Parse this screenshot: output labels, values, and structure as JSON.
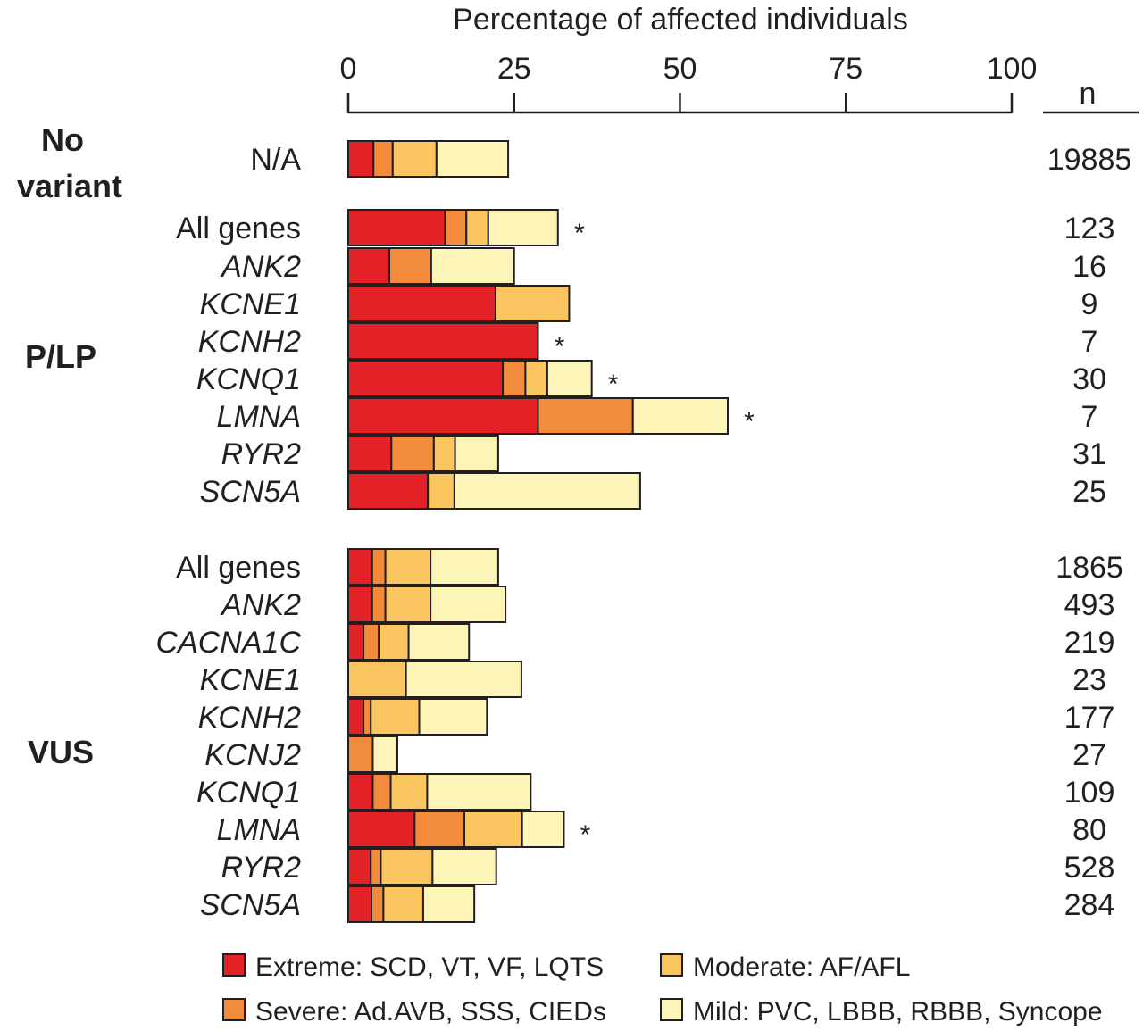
{
  "chart_data": {
    "type": "bar",
    "stacked": true,
    "orientation": "horizontal",
    "xlabel": "Percentage of affected individuals",
    "xlim": [
      0,
      100
    ],
    "xticks": [
      "0",
      "25",
      "50",
      "75",
      "100"
    ],
    "n_header": "n",
    "legend": [
      {
        "name": "Extreme: SCD, VT, VF, LQTS",
        "color": "#e32227"
      },
      {
        "name": "Moderate: AF/AFL",
        "color": "#fbc55f"
      },
      {
        "name": "Severe: Ad.AVB, SSS, CIEDs",
        "color": "#f28c3c"
      },
      {
        "name": "Mild: PVC, LBBB, RBBB, Syncope",
        "color": "#fdf5b7"
      }
    ],
    "series_order": [
      "extreme",
      "severe",
      "moderate",
      "mild"
    ],
    "colors": {
      "extreme": "#e32227",
      "severe": "#f28c3c",
      "moderate": "#fbc55f",
      "mild": "#fdf5b7"
    },
    "groups": [
      {
        "label": "No variant",
        "rows": [
          {
            "label": "N/A",
            "italic": false,
            "n": "19885",
            "star": false,
            "values": [
              3.8,
              2.9,
              6.6,
              10.8
            ]
          }
        ]
      },
      {
        "label": "P/LP",
        "rows": [
          {
            "label": "All genes",
            "italic": false,
            "n": "123",
            "star": true,
            "values": [
              14.6,
              3.2,
              3.3,
              10.5
            ]
          },
          {
            "label": "ANK2",
            "italic": true,
            "n": "16",
            "star": false,
            "values": [
              6.2,
              6.3,
              0,
              12.5
            ]
          },
          {
            "label": "KCNE1",
            "italic": true,
            "n": "9",
            "star": false,
            "values": [
              22.2,
              0,
              11.1,
              0
            ]
          },
          {
            "label": "KCNH2",
            "italic": true,
            "n": "7",
            "star": true,
            "values": [
              28.6,
              0,
              0,
              0
            ]
          },
          {
            "label": "KCNQ1",
            "italic": true,
            "n": "30",
            "star": true,
            "values": [
              23.3,
              3.4,
              3.3,
              6.7
            ]
          },
          {
            "label": "LMNA",
            "italic": true,
            "n": "7",
            "star": true,
            "values": [
              28.6,
              14.3,
              0,
              14.3
            ]
          },
          {
            "label": "RYR2",
            "italic": true,
            "n": "31",
            "star": false,
            "values": [
              6.5,
              6.4,
              3.2,
              6.5
            ]
          },
          {
            "label": "SCN5A",
            "italic": true,
            "n": "25",
            "star": false,
            "values": [
              12.0,
              0,
              4.0,
              28.0
            ]
          }
        ]
      },
      {
        "label": "VUS",
        "rows": [
          {
            "label": "All genes",
            "italic": false,
            "n": "1865",
            "star": false,
            "values": [
              3.6,
              2.0,
              6.8,
              10.2
            ]
          },
          {
            "label": "ANK2",
            "italic": true,
            "n": "493",
            "star": false,
            "values": [
              3.6,
              2.0,
              6.8,
              11.3
            ]
          },
          {
            "label": "CACNA1C",
            "italic": true,
            "n": "219",
            "star": false,
            "values": [
              2.3,
              2.3,
              4.5,
              9.1
            ]
          },
          {
            "label": "KCNE1",
            "italic": true,
            "n": "23",
            "star": false,
            "values": [
              0,
              0,
              8.7,
              17.4
            ]
          },
          {
            "label": "KCNH2",
            "italic": true,
            "n": "177",
            "star": false,
            "values": [
              2.3,
              1.1,
              7.3,
              10.2
            ]
          },
          {
            "label": "KCNJ2",
            "italic": true,
            "n": "27",
            "star": false,
            "values": [
              0,
              3.7,
              0,
              3.7
            ]
          },
          {
            "label": "KCNQ1",
            "italic": true,
            "n": "109",
            "star": false,
            "values": [
              3.7,
              2.7,
              5.5,
              15.6
            ]
          },
          {
            "label": "LMNA",
            "italic": true,
            "n": "80",
            "star": true,
            "values": [
              10.0,
              7.5,
              8.7,
              6.3
            ]
          },
          {
            "label": "RYR2",
            "italic": true,
            "n": "528",
            "star": false,
            "values": [
              3.4,
              1.5,
              7.8,
              9.6
            ]
          },
          {
            "label": "SCN5A",
            "italic": true,
            "n": "284",
            "star": false,
            "values": [
              3.5,
              1.8,
              6.0,
              7.7
            ]
          }
        ]
      }
    ]
  }
}
